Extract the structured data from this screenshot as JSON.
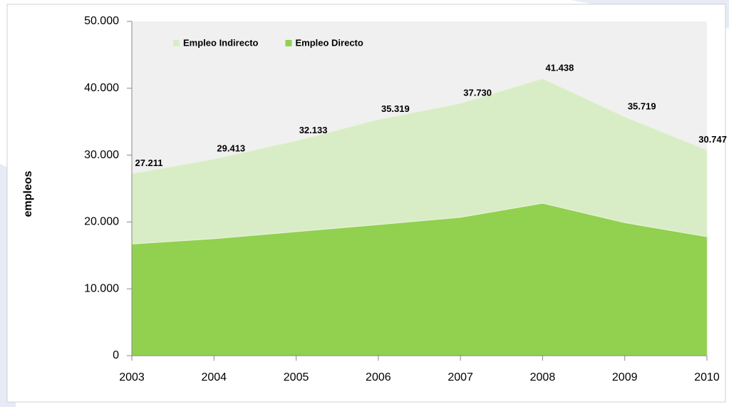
{
  "chart_data": {
    "type": "stacked_area",
    "y_label": "empleos",
    "categories": [
      "2003",
      "2004",
      "2005",
      "2006",
      "2007",
      "2008",
      "2009",
      "2010"
    ],
    "series": [
      {
        "name": "Empleo Directo",
        "color": "#92d050",
        "values": [
          16700,
          17500,
          18550,
          19600,
          20700,
          22800,
          19900,
          17800
        ]
      },
      {
        "name": "Empleo Indirecto",
        "color": "#d8edc5",
        "values": [
          10511,
          11913,
          13583,
          15719,
          17030,
          18638,
          15819,
          12947
        ]
      }
    ],
    "totals": {
      "values": [
        27211,
        29413,
        32133,
        35319,
        37730,
        41438,
        35719,
        30747
      ],
      "value_labels": [
        "27.211",
        "29.413",
        "32.133",
        "35.319",
        "37.730",
        "41.438",
        "35.719",
        "30.747"
      ]
    },
    "ylim": [
      0,
      50000
    ],
    "yticks": [
      0,
      {
        "value": 10000,
        "label": "10.000"
      },
      {
        "value": 20000,
        "label": "20.000"
      },
      {
        "value": 30000,
        "label": "30.000"
      },
      {
        "value": 40000,
        "label": "40.000"
      },
      {
        "value": 50000,
        "label": "50.000"
      }
    ],
    "plot_background": "#f0f0f0",
    "legend": "top-left"
  }
}
